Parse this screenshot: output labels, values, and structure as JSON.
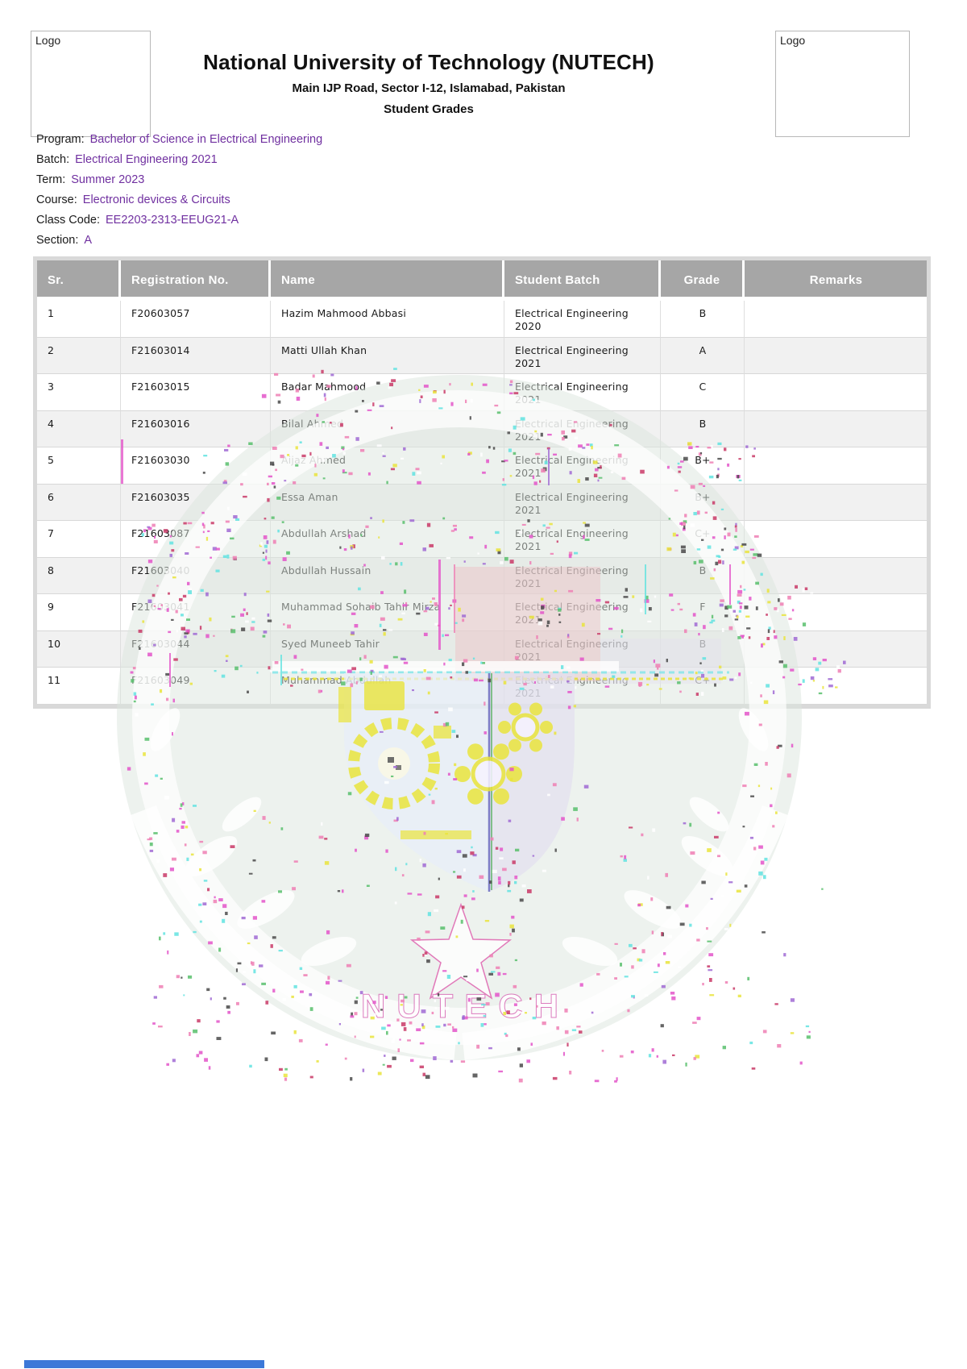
{
  "header": {
    "logo_left_label": "Logo",
    "logo_right_label": "Logo",
    "university_name": "National University of Technology (NUTECH)",
    "address": "Main IJP Road, Sector I-12, Islamabad, Pakistan",
    "document_title": "Student Grades"
  },
  "meta": {
    "fields": [
      {
        "label": "Program:",
        "value": "Bachelor of Science in Electrical Engineering"
      },
      {
        "label": "Batch:",
        "value": "Electrical Engineering 2021"
      },
      {
        "label": "Term:",
        "value": "Summer 2023"
      },
      {
        "label": "Course:",
        "value": "Electronic devices & Circuits"
      },
      {
        "label": "Class Code:",
        "value": "EE2203-2313-EEUG21-A"
      },
      {
        "label": "Section:",
        "value": "A"
      }
    ]
  },
  "table": {
    "columns": [
      "Sr.",
      "Registration No.",
      "Name",
      "Student Batch",
      "Grade",
      "Remarks"
    ],
    "rows": [
      {
        "sr": "1",
        "reg": "F20603057",
        "name": "Hazim Mahmood Abbasi",
        "batch": "Electrical Engineering 2020",
        "grade": "B",
        "remarks": ""
      },
      {
        "sr": "2",
        "reg": "F21603014",
        "name": "Matti Ullah Khan",
        "batch": "Electrical Engineering 2021",
        "grade": "A",
        "remarks": ""
      },
      {
        "sr": "3",
        "reg": "F21603015",
        "name": "Badar Mahmood",
        "batch": "Electrical Engineering 2021",
        "grade": "C",
        "remarks": ""
      },
      {
        "sr": "4",
        "reg": "F21603016",
        "name": "Bilal Ahmed",
        "batch": "Electrical Engineering 2021",
        "grade": "B",
        "remarks": ""
      },
      {
        "sr": "5",
        "reg": "F21603030",
        "name": "Aijaz Ahmed",
        "batch": "Electrical Engineering 2021",
        "grade": "B+",
        "remarks": ""
      },
      {
        "sr": "6",
        "reg": "F21603035",
        "name": "Essa Aman",
        "batch": "Electrical Engineering 2021",
        "grade": "B+",
        "remarks": ""
      },
      {
        "sr": "7",
        "reg": "F21603087",
        "name": "Abdullah Arshad",
        "batch": "Electrical Engineering 2021",
        "grade": "C+",
        "remarks": ""
      },
      {
        "sr": "8",
        "reg": "F21603040",
        "name": "Abdullah Hussain",
        "batch": "Electrical Engineering 2021",
        "grade": "B",
        "remarks": ""
      },
      {
        "sr": "9",
        "reg": "F21603041",
        "name": "Muhammad Sohaib Tahir Mirza",
        "batch": "Electrical Engineering 2021",
        "grade": "F",
        "remarks": ""
      },
      {
        "sr": "10",
        "reg": "F21603044",
        "name": "Syed Muneeb Tahir",
        "batch": "Electrical Engineering 2021",
        "grade": "B",
        "remarks": ""
      },
      {
        "sr": "11",
        "reg": "F21603049",
        "name": "Muhammad Abdullah",
        "batch": "Electrical Engineering 2021",
        "grade": "C+",
        "remarks": ""
      }
    ]
  },
  "watermark": {
    "seal_text": "NUTECH"
  },
  "colors": {
    "meta_value": "#7030A0",
    "table_header_bg": "#a6a6a6",
    "accent_blue_bar": "#3C78D8"
  }
}
